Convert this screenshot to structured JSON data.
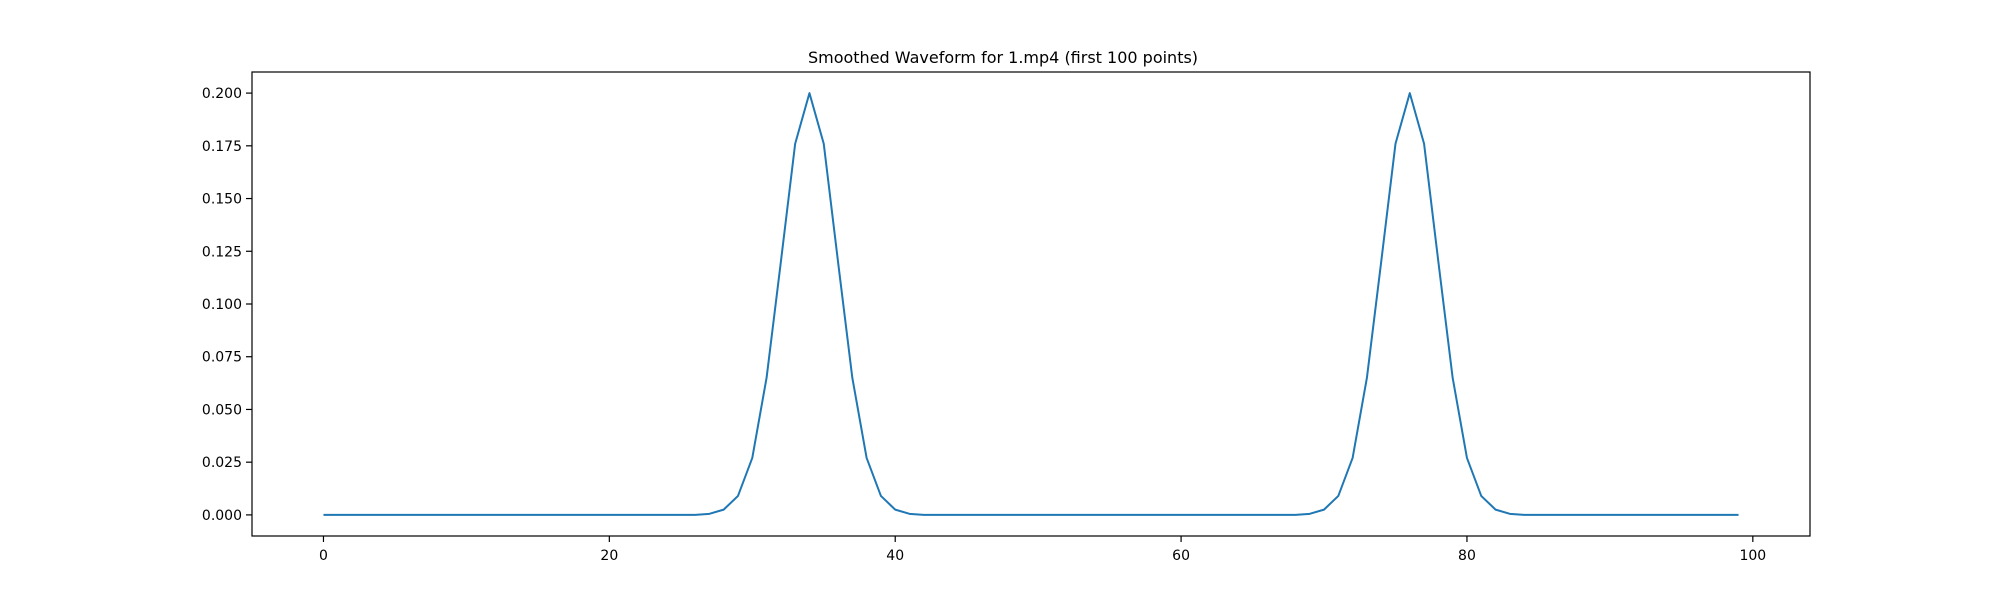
{
  "chart_data": {
    "type": "line",
    "title": "Smoothed Waveform for 1.mp4 (first 100 points)",
    "xlabel": "",
    "ylabel": "",
    "xlim": [
      -5,
      104
    ],
    "ylim": [
      -0.01,
      0.21
    ],
    "xticks": [
      0,
      20,
      40,
      60,
      80,
      100
    ],
    "xtick_labels": [
      "0",
      "20",
      "40",
      "60",
      "80",
      "100"
    ],
    "yticks": [
      0,
      0.025,
      0.05,
      0.075,
      0.1,
      0.125,
      0.15,
      0.175,
      0.2
    ],
    "ytick_labels": [
      "0.000",
      "0.025",
      "0.050",
      "0.075",
      "0.100",
      "0.125",
      "0.150",
      "0.175",
      "0.200"
    ],
    "grid": false,
    "series": [
      {
        "color": "#1f77b4",
        "x": [
          0,
          1,
          2,
          3,
          4,
          5,
          6,
          7,
          8,
          9,
          10,
          11,
          12,
          13,
          14,
          15,
          16,
          17,
          18,
          19,
          20,
          21,
          22,
          23,
          24,
          25,
          26,
          27,
          28,
          29,
          30,
          31,
          32,
          33,
          34,
          35,
          36,
          37,
          38,
          39,
          40,
          41,
          42,
          43,
          44,
          45,
          46,
          47,
          48,
          49,
          50,
          51,
          52,
          53,
          54,
          55,
          56,
          57,
          58,
          59,
          60,
          61,
          62,
          63,
          64,
          65,
          66,
          67,
          68,
          69,
          70,
          71,
          72,
          73,
          74,
          75,
          76,
          77,
          78,
          79,
          80,
          81,
          82,
          83,
          84,
          85,
          86,
          87,
          88,
          89,
          90,
          91,
          92,
          93,
          94,
          95,
          96,
          97,
          98,
          99
        ],
        "y": [
          0,
          0,
          0,
          0,
          0,
          0,
          0,
          0,
          0,
          0,
          0,
          0,
          0,
          0,
          0,
          0,
          0,
          0,
          0,
          0,
          0,
          0,
          0,
          0,
          0,
          0,
          0,
          0.0005,
          0.0025,
          0.009,
          0.027,
          0.065,
          0.12,
          0.176,
          0.2,
          0.176,
          0.12,
          0.065,
          0.027,
          0.009,
          0.0025,
          0.0005,
          0,
          0,
          0,
          0,
          0,
          0,
          0,
          0,
          0,
          0,
          0,
          0,
          0,
          0,
          0,
          0,
          0,
          0,
          0,
          0,
          0,
          0,
          0,
          0,
          0,
          0,
          0,
          0.0005,
          0.0025,
          0.009,
          0.027,
          0.065,
          0.12,
          0.176,
          0.2,
          0.176,
          0.12,
          0.065,
          0.027,
          0.009,
          0.0025,
          0.0005,
          0,
          0,
          0,
          0,
          0,
          0,
          0,
          0,
          0,
          0,
          0,
          0,
          0,
          0,
          0,
          0
        ]
      }
    ]
  }
}
